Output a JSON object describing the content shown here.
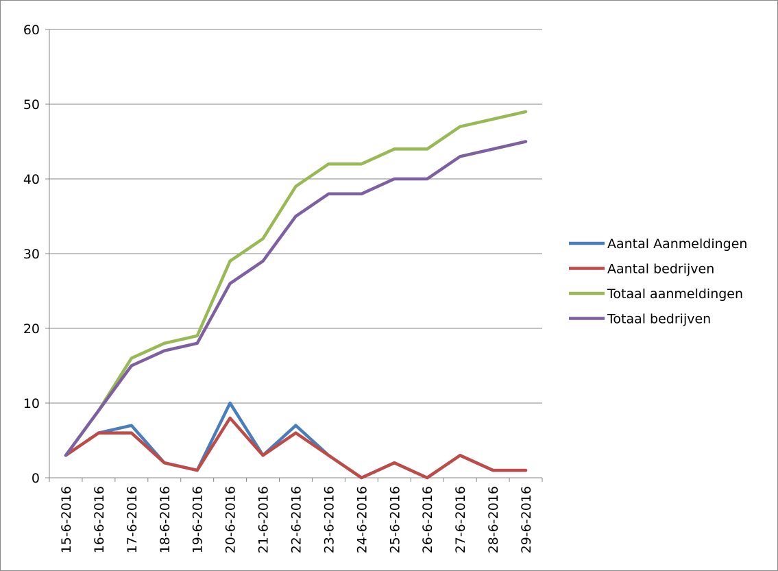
{
  "chart_data": {
    "type": "line",
    "title": "",
    "xlabel": "",
    "ylabel": "",
    "ylim": [
      0,
      60
    ],
    "yticks": [
      0,
      10,
      20,
      30,
      40,
      50,
      60
    ],
    "grid": "horizontal",
    "legend_position": "right",
    "categories": [
      "15-6-2016",
      "16-6-2016",
      "17-6-2016",
      "18-6-2016",
      "19-6-2016",
      "20-6-2016",
      "21-6-2016",
      "22-6-2016",
      "23-6-2016",
      "24-6-2016",
      "25-6-2016",
      "26-6-2016",
      "27-6-2016",
      "28-6-2016",
      "29-6-2016"
    ],
    "series": [
      {
        "name": "Aantal Aanmeldingen",
        "color": "#4a7ebb",
        "values": [
          3,
          6,
          7,
          2,
          1,
          10,
          3,
          7,
          3,
          0,
          2,
          0,
          3,
          1,
          1
        ]
      },
      {
        "name": "Aantal bedrijven",
        "color": "#be4b48",
        "values": [
          3,
          6,
          6,
          2,
          1,
          8,
          3,
          6,
          3,
          0,
          2,
          0,
          3,
          1,
          1
        ]
      },
      {
        "name": "Totaal aanmeldingen",
        "color": "#98b954",
        "values": [
          3,
          9,
          16,
          18,
          19,
          29,
          32,
          39,
          42,
          42,
          44,
          44,
          47,
          48,
          49
        ]
      },
      {
        "name": "Totaal bedrijven",
        "color": "#7d60a0",
        "values": [
          3,
          9,
          15,
          17,
          18,
          26,
          29,
          35,
          38,
          38,
          40,
          40,
          43,
          44,
          45
        ]
      }
    ]
  }
}
